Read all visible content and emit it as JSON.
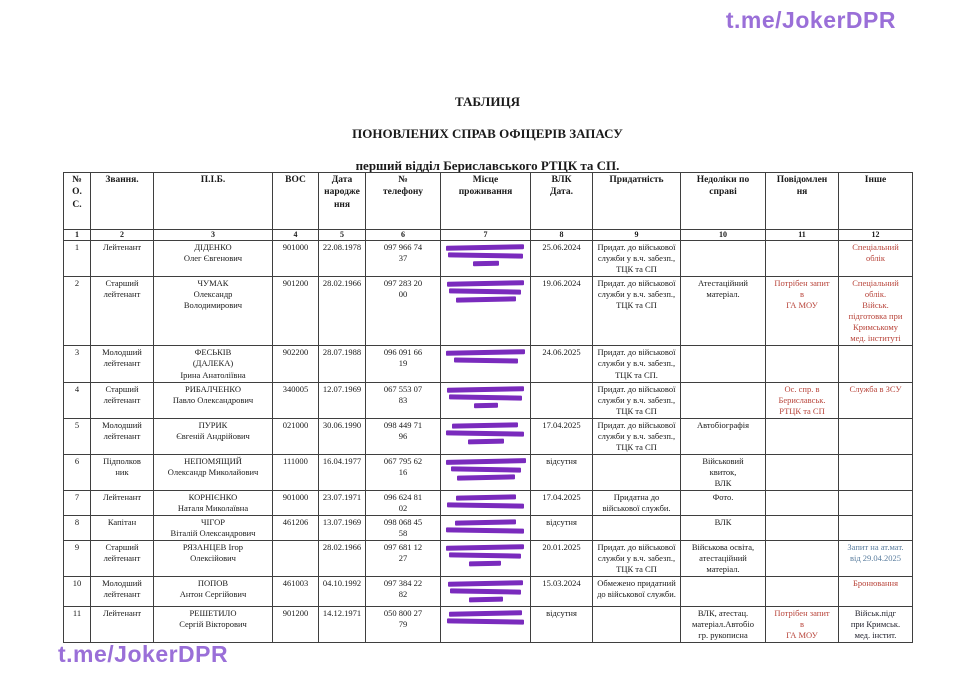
{
  "watermark": "t.me/JokerDPR",
  "title": {
    "line1": "ТАБЛИЦЯ",
    "line2": "ПОНОВЛЕНИХ СПРАВ ОФІЦЕРІВ  ЗАПАСУ",
    "line3": "перший відділ Бериславського РТЦК та СП."
  },
  "colors": {
    "accent": "#9a6fd8",
    "redaction": "#7a2bbd",
    "red": "#b8443a",
    "blue": "#5a7d9e",
    "dark": "#22222e"
  },
  "table": {
    "headers": [
      "№\nО.\nС.",
      "Звання.",
      "П.І.Б.",
      "ВОС",
      "Дата\nнародже\nння",
      "№\nтелефону",
      "Місце\nпроживання",
      "ВЛК\nДата.",
      "Придатність",
      "Недоліки по\nсправі",
      "Повідомлен\nня",
      "Інше"
    ],
    "col_numbers": [
      "1",
      "2",
      "3",
      "4",
      "5",
      "6",
      "7",
      "8",
      "9",
      "10",
      "11",
      "12"
    ],
    "rows": [
      {
        "num": "1",
        "rank": "Лейтенант",
        "name": "ДІДЕНКО\nОлег Євгенович",
        "vos": "901000",
        "dob": "22.08.1978",
        "phone": "097 966 74\n37",
        "redact": [
          92,
          88,
          30
        ],
        "vlk": "25.06.2024",
        "fitness": "Придат. до військової\nслужби у в.ч. забезп.,\nТЦК та СП",
        "deficiencies": "",
        "notification": "",
        "other": "Спеціальний\nоблік",
        "other_color": "red"
      },
      {
        "num": "2",
        "rank": "Старший\nлейтенант",
        "name": "ЧУМАК\nОлександр\nВолодимирович",
        "vos": "901200",
        "dob": "28.02.1966",
        "phone": "097 283 20\n00",
        "redact": [
          90,
          85,
          70
        ],
        "vlk": "19.06.2024",
        "fitness": "Придат. до військової\nслужби у в.ч. забезп.,\nТЦК та СП",
        "deficiencies": "Атестаційний\nматеріал.",
        "notification": "Потрібен запит\nв\nГА МОУ",
        "notification_color": "red",
        "other": "Спеціальний\nоблік.\nВійськ.\nпідготовка при\nКримському\nмед. інституті",
        "other_color": "red"
      },
      {
        "num": "3",
        "rank": "Молодший\nлейтенант",
        "name": "ФЕСЬКІВ\n(ДАЛЕКА)\nІрина Анатоліївна",
        "vos": "902200",
        "dob": "28.07.1988",
        "phone": "096 091 66\n19",
        "redact": [
          93,
          75
        ],
        "vlk": "24.06.2025",
        "fitness": "Придат. до військової\nслужби у в.ч. забезп.,\nТЦК та СП.",
        "deficiencies": "",
        "notification": "",
        "other": ""
      },
      {
        "num": "4",
        "rank": "Старший\nлейтенант",
        "name": "РИБАЛЧЕНКО\nПавло Олександрович",
        "vos": "340005",
        "dob": "12.07.1969",
        "phone": "067 553 07\n83",
        "redact": [
          90,
          86,
          28
        ],
        "vlk": "",
        "fitness": "Придат. до військової\nслужби у в.ч. забезп.,\nТЦК та СП",
        "deficiencies": "",
        "notification": "Ос. спр. в\nБериславськ.\nРТЦК та СП",
        "notification_color": "red",
        "other": "Служба в ЗСУ",
        "other_color": "red"
      },
      {
        "num": "5",
        "rank": "Молодший\nлейтенант",
        "name": "ПУРИК\nЄвгеній Андрійович",
        "vos": "021000",
        "dob": "30.06.1990",
        "phone": "098 449 71\n96",
        "redact": [
          78,
          92,
          42
        ],
        "vlk": "17.04.2025",
        "fitness": "Придат. до військової\nслужби у в.ч. забезп.,\nТЦК та СП",
        "deficiencies": "Автобіографія",
        "notification": "",
        "other": ""
      },
      {
        "num": "6",
        "rank": "Підполков\nник",
        "name": "НЕПОМЯЩИЙ\nОлександр Миколайович",
        "vos": "111000",
        "dob": "16.04.1977",
        "phone": "067 795 62\n16",
        "redact": [
          94,
          82,
          68
        ],
        "vlk": "відсутня",
        "fitness": "",
        "deficiencies": "Військовий\nквиток,\nВЛК",
        "notification": "",
        "other": ""
      },
      {
        "num": "7",
        "rank": "Лейтенант",
        "name": "КОРНІЄНКО\nНаталя Миколаївна",
        "vos": "901000",
        "dob": "23.07.1971",
        "phone": "096 624 81\n02",
        "redact": [
          70,
          90
        ],
        "vlk": "17.04.2025",
        "fitness": "Придатна до\nвійськової служби.",
        "deficiencies": "Фото.",
        "notification": "",
        "other": ""
      },
      {
        "num": "8",
        "rank": "Капітан",
        "name": "ЧІГОР\nВіталій Олександрович",
        "vos": "461206",
        "dob": "13.07.1969",
        "phone": "098 068 45\n58",
        "redact": [
          72,
          92
        ],
        "vlk": "відсутня",
        "fitness": "",
        "deficiencies": "ВЛК",
        "notification": "",
        "other": ""
      },
      {
        "num": "9",
        "rank": "Старший\nлейтенант",
        "name": "РЯЗАНЦЕВ    Ігор\nОлексійович",
        "vos": "",
        "dob": "28.02.1966",
        "phone": "097 681 12\n27",
        "redact": [
          92,
          85,
          38
        ],
        "vlk": "20.01.2025",
        "fitness": "Придат. до військової\nслужби у в.ч. забезп.,\nТЦК та СП",
        "deficiencies": "Військова освіта,\nатестаційний\nматеріал.",
        "notification": "",
        "other": "Запит на ат.мат.\nвід 29.04.2025",
        "other_color": "blue"
      },
      {
        "num": "10",
        "rank": "Молодший\nлейтенант",
        "name": "ПОПОВ\nАнтон Сергійович",
        "vos": "461003",
        "dob": "04.10.1992",
        "phone": "097 384 22\n82",
        "redact": [
          88,
          84,
          40
        ],
        "vlk": "15.03.2024",
        "fitness": "Обмежено придатний\nдо військової служби.",
        "deficiencies": "",
        "notification": "",
        "other": "Бронювання",
        "other_color": "red"
      },
      {
        "num": "11",
        "rank": "Лейтенант",
        "name": "РЕШЕТИЛО\nСергій Вікторович",
        "vos": "901200",
        "dob": "14.12.1971",
        "phone": "050 800 27\n79",
        "redact": [
          86,
          90
        ],
        "vlk": "відсутня",
        "fitness": "",
        "deficiencies": "ВЛК, атестац.\nматеріал.Автобіо\nгр. рукописна",
        "notification": "Потрібен запит\nв\nГА МОУ",
        "notification_color": "red",
        "other": "Військ.підг\nпри Кримськ.\nмед. інстит.",
        "other_color": "dark"
      }
    ]
  }
}
